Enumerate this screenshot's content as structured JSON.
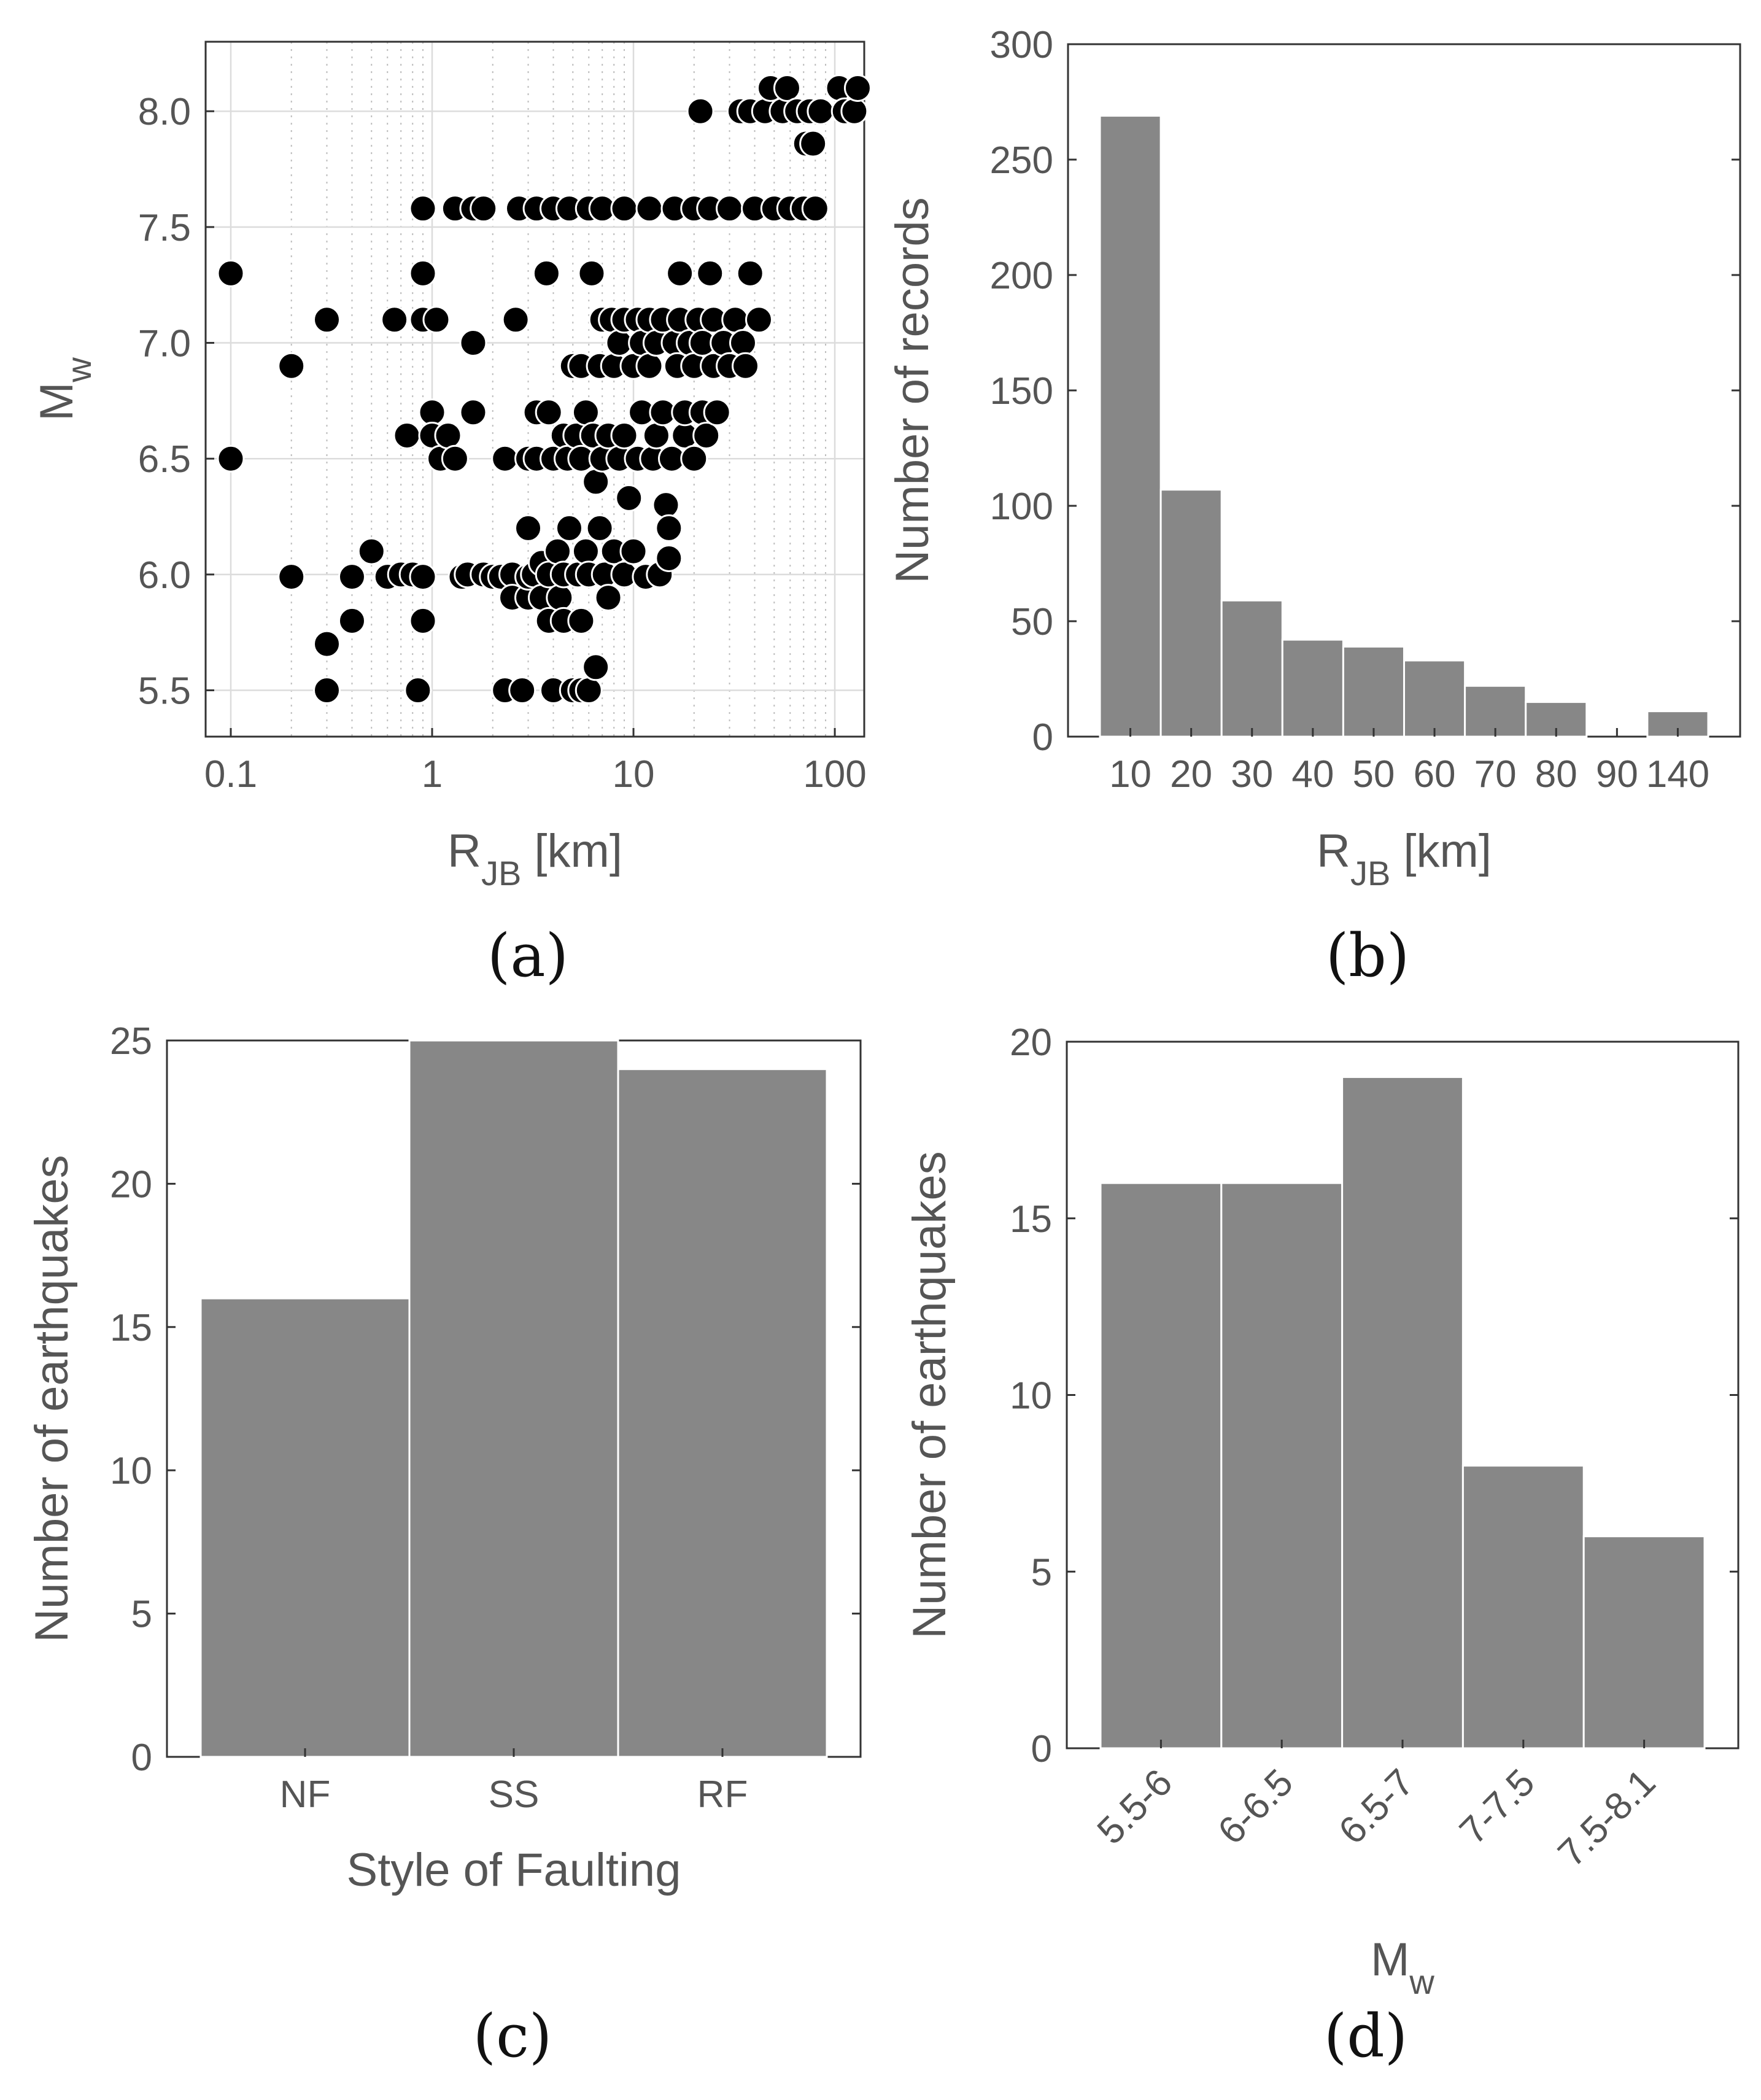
{
  "chart_data": [
    {
      "id": "a",
      "type": "scatter",
      "caption": "(a)",
      "xlabel": "R",
      "xlabel_sub": "JB",
      "xlabel_unit": " [km]",
      "ylabel": "M",
      "ylabel_sub": "w",
      "xscale": "log",
      "xlim": [
        0.075,
        140
      ],
      "ylim": [
        5.3,
        8.3
      ],
      "xticks": [
        0.1,
        1,
        10,
        100
      ],
      "xtick_labels": [
        "0.1",
        "1",
        "10",
        "100"
      ],
      "yticks": [
        5.5,
        6.0,
        6.5,
        7.0,
        7.5,
        8.0
      ],
      "ytick_labels": [
        "5.5",
        "6.0",
        "6.5",
        "7.0",
        "7.5",
        "8.0"
      ],
      "grid": true,
      "points": [
        [
          0.1,
          7.3
        ],
        [
          0.1,
          6.5
        ],
        [
          0.2,
          6.9
        ],
        [
          0.2,
          5.99
        ],
        [
          0.3,
          7.1
        ],
        [
          0.3,
          5.7
        ],
        [
          0.3,
          5.5
        ],
        [
          0.4,
          5.99
        ],
        [
          0.4,
          5.8
        ],
        [
          0.5,
          6.1
        ],
        [
          0.6,
          5.99
        ],
        [
          0.65,
          7.1
        ],
        [
          0.7,
          6.0
        ],
        [
          0.75,
          6.6
        ],
        [
          0.8,
          6.0
        ],
        [
          0.85,
          5.5
        ],
        [
          0.9,
          7.3
        ],
        [
          0.9,
          7.58
        ],
        [
          0.9,
          7.1
        ],
        [
          0.9,
          5.99
        ],
        [
          0.9,
          5.8
        ],
        [
          1.0,
          6.7
        ],
        [
          1.0,
          6.6
        ],
        [
          1.05,
          7.1
        ],
        [
          1.1,
          6.5
        ],
        [
          1.2,
          6.6
        ],
        [
          1.3,
          7.58
        ],
        [
          1.3,
          6.5
        ],
        [
          1.4,
          5.99
        ],
        [
          1.5,
          6.0
        ],
        [
          1.6,
          7.58
        ],
        [
          1.6,
          7.0
        ],
        [
          1.6,
          6.7
        ],
        [
          1.8,
          7.58
        ],
        [
          1.8,
          6.0
        ],
        [
          2.0,
          5.99
        ],
        [
          2.2,
          5.99
        ],
        [
          2.3,
          6.5
        ],
        [
          2.3,
          5.5
        ],
        [
          2.5,
          6.0
        ],
        [
          2.5,
          5.9
        ],
        [
          2.6,
          7.1
        ],
        [
          2.7,
          7.58
        ],
        [
          2.8,
          5.5
        ],
        [
          3.0,
          6.5
        ],
        [
          3.0,
          6.2
        ],
        [
          3.0,
          5.9
        ],
        [
          3.0,
          5.99
        ],
        [
          3.2,
          6.0
        ],
        [
          3.3,
          7.58
        ],
        [
          3.3,
          6.7
        ],
        [
          3.3,
          6.5
        ],
        [
          3.5,
          6.05
        ],
        [
          3.5,
          5.9
        ],
        [
          3.7,
          7.3
        ],
        [
          3.8,
          6.7
        ],
        [
          3.8,
          6.0
        ],
        [
          3.8,
          5.8
        ],
        [
          4.0,
          7.58
        ],
        [
          4.0,
          6.5
        ],
        [
          4.0,
          5.5
        ],
        [
          4.2,
          6.1
        ],
        [
          4.3,
          5.9
        ],
        [
          4.5,
          6.6
        ],
        [
          4.5,
          6.0
        ],
        [
          4.5,
          5.8
        ],
        [
          4.7,
          6.5
        ],
        [
          4.8,
          7.58
        ],
        [
          4.8,
          6.2
        ],
        [
          5.0,
          6.9
        ],
        [
          5.0,
          5.5
        ],
        [
          5.2,
          6.6
        ],
        [
          5.3,
          6.0
        ],
        [
          5.5,
          6.5
        ],
        [
          5.5,
          6.9
        ],
        [
          5.5,
          5.8
        ],
        [
          5.5,
          5.5
        ],
        [
          5.8,
          6.7
        ],
        [
          5.8,
          6.1
        ],
        [
          6.0,
          7.58
        ],
        [
          6.0,
          6.0
        ],
        [
          6.0,
          5.5
        ],
        [
          6.2,
          7.3
        ],
        [
          6.3,
          6.6
        ],
        [
          6.5,
          6.4
        ],
        [
          6.5,
          5.6
        ],
        [
          6.8,
          6.9
        ],
        [
          6.8,
          6.2
        ],
        [
          7.0,
          7.58
        ],
        [
          7.0,
          7.1
        ],
        [
          7.0,
          6.5
        ],
        [
          7.2,
          6.0
        ],
        [
          7.5,
          6.6
        ],
        [
          7.5,
          5.9
        ],
        [
          7.8,
          7.1
        ],
        [
          8.0,
          6.9
        ],
        [
          8.0,
          6.1
        ],
        [
          8.5,
          7.0
        ],
        [
          8.5,
          6.5
        ],
        [
          9.0,
          7.58
        ],
        [
          9.0,
          7.1
        ],
        [
          9.0,
          6.6
        ],
        [
          9.0,
          6.0
        ],
        [
          9.5,
          6.33
        ],
        [
          10.0,
          6.9
        ],
        [
          10.0,
          6.1
        ],
        [
          10.5,
          7.1
        ],
        [
          10.5,
          6.5
        ],
        [
          11.0,
          7.0
        ],
        [
          11.0,
          6.7
        ],
        [
          11.5,
          5.99
        ],
        [
          12.0,
          7.58
        ],
        [
          12.0,
          7.1
        ],
        [
          12.0,
          6.9
        ],
        [
          12.5,
          6.5
        ],
        [
          13.0,
          7.0
        ],
        [
          13.0,
          6.6
        ],
        [
          13.5,
          6.0
        ],
        [
          14.0,
          7.1
        ],
        [
          14.0,
          6.7
        ],
        [
          14.5,
          6.3
        ],
        [
          15.0,
          6.2
        ],
        [
          15.0,
          6.07
        ],
        [
          15.5,
          6.5
        ],
        [
          16.0,
          7.58
        ],
        [
          16.0,
          7.0
        ],
        [
          16.5,
          6.9
        ],
        [
          17.0,
          7.3
        ],
        [
          17.0,
          7.1
        ],
        [
          18.0,
          6.6
        ],
        [
          18.0,
          6.7
        ],
        [
          19.0,
          7.0
        ],
        [
          20.0,
          7.58
        ],
        [
          20.0,
          6.9
        ],
        [
          20.0,
          6.5
        ],
        [
          21.0,
          7.1
        ],
        [
          21.5,
          8.0
        ],
        [
          22.0,
          7.0
        ],
        [
          22.0,
          6.7
        ],
        [
          23.0,
          6.6
        ],
        [
          24.0,
          7.3
        ],
        [
          24.0,
          7.58
        ],
        [
          25.0,
          6.9
        ],
        [
          25.0,
          7.1
        ],
        [
          26.0,
          6.7
        ],
        [
          28.0,
          7.0
        ],
        [
          30.0,
          7.58
        ],
        [
          30.0,
          6.9
        ],
        [
          32.0,
          7.1
        ],
        [
          34.0,
          8.0
        ],
        [
          35.0,
          7.0
        ],
        [
          36.0,
          6.9
        ],
        [
          38.0,
          7.3
        ],
        [
          38.0,
          8.0
        ],
        [
          40.0,
          7.58
        ],
        [
          42.0,
          7.1
        ],
        [
          45.0,
          8.0
        ],
        [
          48.0,
          8.1
        ],
        [
          50.0,
          7.58
        ],
        [
          55.0,
          8.0
        ],
        [
          58.0,
          8.1
        ],
        [
          60.0,
          7.58
        ],
        [
          65.0,
          8.0
        ],
        [
          70.0,
          7.58
        ],
        [
          72.0,
          7.86
        ],
        [
          75.0,
          8.0
        ],
        [
          78.0,
          7.86
        ],
        [
          80.0,
          7.58
        ],
        [
          85.0,
          8.0
        ],
        [
          105.0,
          8.1
        ],
        [
          112.0,
          8.0
        ],
        [
          125.0,
          8.0
        ],
        [
          130.0,
          8.1
        ]
      ]
    },
    {
      "id": "b",
      "type": "bar",
      "caption": "(b)",
      "xlabel": "R",
      "xlabel_sub": "JB",
      "xlabel_unit": " [km]",
      "ylabel": "Number of records",
      "categories": [
        "10",
        "20",
        "30",
        "40",
        "50",
        "60",
        "70",
        "80",
        "90",
        "140"
      ],
      "values": [
        269,
        107,
        59,
        42,
        39,
        33,
        22,
        15,
        0,
        11
      ],
      "ylim": [
        0,
        300
      ],
      "yticks": [
        0,
        50,
        100,
        150,
        200,
        250,
        300
      ],
      "grid": false
    },
    {
      "id": "c",
      "type": "bar",
      "caption": "(c)",
      "xlabel": "Style of Faulting",
      "ylabel": "Number of earthquakes",
      "categories": [
        "NF",
        "SS",
        "RF"
      ],
      "values": [
        16,
        25,
        24
      ],
      "ylim": [
        0,
        25
      ],
      "yticks": [
        0,
        5,
        10,
        15,
        20,
        25
      ],
      "grid": false
    },
    {
      "id": "d",
      "type": "bar",
      "caption": "(d)",
      "xlabel": "M",
      "xlabel_sub": "w",
      "ylabel": "Number of earthquakes",
      "categories": [
        "5.5-6",
        "6-6.5",
        "6.5-7",
        "7-7.5",
        "7.5-8.1"
      ],
      "values": [
        16,
        16,
        19,
        8,
        6
      ],
      "ylim": [
        0,
        20
      ],
      "yticks": [
        0,
        5,
        10,
        15,
        20
      ],
      "grid": false
    }
  ]
}
